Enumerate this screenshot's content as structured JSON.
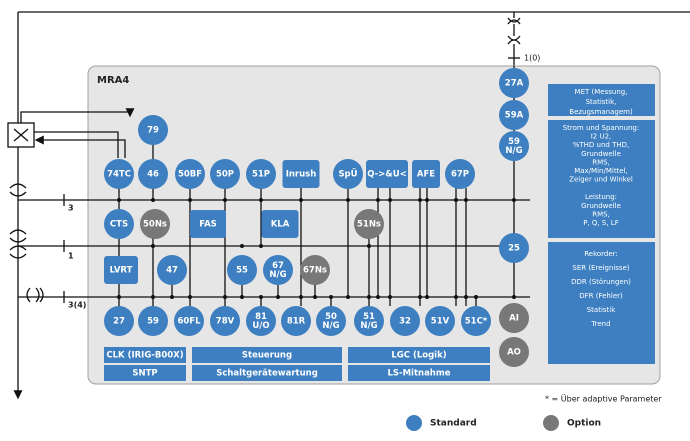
{
  "title": "MRA4",
  "ct_label": "1(0)",
  "line_labels": [
    "3",
    "1",
    "3(4)"
  ],
  "functions": [
    {
      "lines": [
        "27A"
      ],
      "color": "#3d7fc0"
    },
    {
      "lines": [
        "59A"
      ],
      "color": "#3d7fc0"
    },
    {
      "lines": [
        "59",
        "N/G"
      ],
      "color": "#3d7fc0"
    },
    {
      "lines": [
        "79"
      ],
      "color": "#3d7fc0"
    },
    {
      "lines": [
        "74TC"
      ],
      "color": "#3d7fc0"
    },
    {
      "lines": [
        "46"
      ],
      "color": "#3d7fc0"
    },
    {
      "lines": [
        "50BF"
      ],
      "color": "#3d7fc0"
    },
    {
      "lines": [
        "50P"
      ],
      "color": "#3d7fc0"
    },
    {
      "lines": [
        "51P"
      ],
      "color": "#3d7fc0"
    },
    {
      "lines": [
        "Inrush"
      ],
      "color": "#3d7fc0"
    },
    {
      "lines": [
        "SpÜ"
      ],
      "color": "#3d7fc0"
    },
    {
      "lines": [
        "Q->&U<"
      ],
      "color": "#3d7fc0"
    },
    {
      "lines": [
        "AFE"
      ],
      "color": "#3d7fc0"
    },
    {
      "lines": [
        "67P"
      ],
      "color": "#3d7fc0"
    },
    {
      "lines": [
        "CTS"
      ],
      "color": "#3d7fc0"
    },
    {
      "lines": [
        "50Ns"
      ],
      "color": "#787878"
    },
    {
      "lines": [
        "FAS"
      ],
      "color": "#3d7fc0"
    },
    {
      "lines": [
        "KLA"
      ],
      "color": "#3d7fc0"
    },
    {
      "lines": [
        "51Ns"
      ],
      "color": "#787878"
    },
    {
      "lines": [
        "25"
      ],
      "color": "#3d7fc0"
    },
    {
      "lines": [
        "LVRT"
      ],
      "color": "#3d7fc0"
    },
    {
      "lines": [
        "47"
      ],
      "color": "#3d7fc0"
    },
    {
      "lines": [
        "55"
      ],
      "color": "#3d7fc0"
    },
    {
      "lines": [
        "67",
        "N/G"
      ],
      "color": "#3d7fc0"
    },
    {
      "lines": [
        "67Ns"
      ],
      "color": "#787878"
    },
    {
      "lines": [
        "27"
      ],
      "color": "#3d7fc0"
    },
    {
      "lines": [
        "59"
      ],
      "color": "#3d7fc0"
    },
    {
      "lines": [
        "60FL"
      ],
      "color": "#3d7fc0"
    },
    {
      "lines": [
        "78V"
      ],
      "color": "#3d7fc0"
    },
    {
      "lines": [
        "81",
        "U/O"
      ],
      "color": "#3d7fc0"
    },
    {
      "lines": [
        "81R"
      ],
      "color": "#3d7fc0"
    },
    {
      "lines": [
        "50",
        "N/G"
      ],
      "color": "#3d7fc0"
    },
    {
      "lines": [
        "51",
        "N/G"
      ],
      "color": "#3d7fc0"
    },
    {
      "lines": [
        "32"
      ],
      "color": "#3d7fc0"
    },
    {
      "lines": [
        "51V"
      ],
      "color": "#3d7fc0"
    },
    {
      "lines": [
        "51C*"
      ],
      "color": "#3d7fc0"
    },
    {
      "lines": [
        "AI"
      ],
      "color": "#787878"
    },
    {
      "lines": [
        "AO"
      ],
      "color": "#787878"
    }
  ],
  "info_panels": [
    {
      "lines": [
        "MET (Messung,",
        "Statistik,",
        "Bezugsmanagem)"
      ]
    },
    {
      "lines": [
        "Strom und Spannung:",
        "I2 U2,",
        "%THD und THD,",
        "Grundwelle",
        "RMS,",
        "Max/Min/Mittel,",
        "Zeiger und Winkel",
        "Leistung:",
        "Grundwelle",
        "RMS,",
        "P, Q, S, LF"
      ]
    },
    {
      "lines": [
        "Rekorder:",
        "SER (Ereignisse)",
        "DDR (Störungen)",
        "DFR (Fehler)",
        "Statistik",
        "Trend"
      ]
    }
  ],
  "bars": [
    "CLK (IRIG-B00X)",
    "SNTP",
    "Steuerung",
    "Schaltgerätewartung",
    "LGC (Logik)",
    "LS-Mitnahme"
  ],
  "footnote": "* = Über adaptive Parameter",
  "legend": [
    {
      "label": "Standard",
      "color": "#3d7fc0"
    },
    {
      "label": "Option",
      "color": "#787878"
    }
  ]
}
